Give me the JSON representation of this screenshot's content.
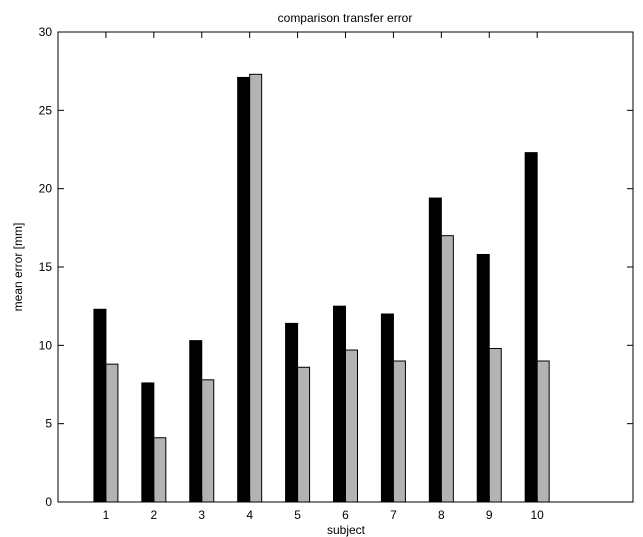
{
  "chart_data": {
    "type": "bar",
    "title": "comparison transfer error",
    "xlabel": "subject",
    "ylabel": "mean error [mm]",
    "categories": [
      "1",
      "2",
      "3",
      "4",
      "5",
      "6",
      "7",
      "8",
      "9",
      "10"
    ],
    "series": [
      {
        "values": [
          12.3,
          7.6,
          10.3,
          27.1,
          11.4,
          12.5,
          12.0,
          19.4,
          15.8,
          22.3
        ],
        "color": "#000000"
      },
      {
        "values": [
          8.8,
          4.1,
          7.8,
          27.3,
          8.6,
          9.7,
          9.0,
          17.0,
          9.8,
          9.0
        ],
        "color": "#b3b3b3"
      }
    ],
    "ylim": [
      0,
      30
    ],
    "yticks": [
      "0",
      "5",
      "10",
      "15",
      "20",
      "25",
      "30"
    ],
    "xlim": [
      0,
      12
    ],
    "grid": false,
    "legend": "none"
  }
}
